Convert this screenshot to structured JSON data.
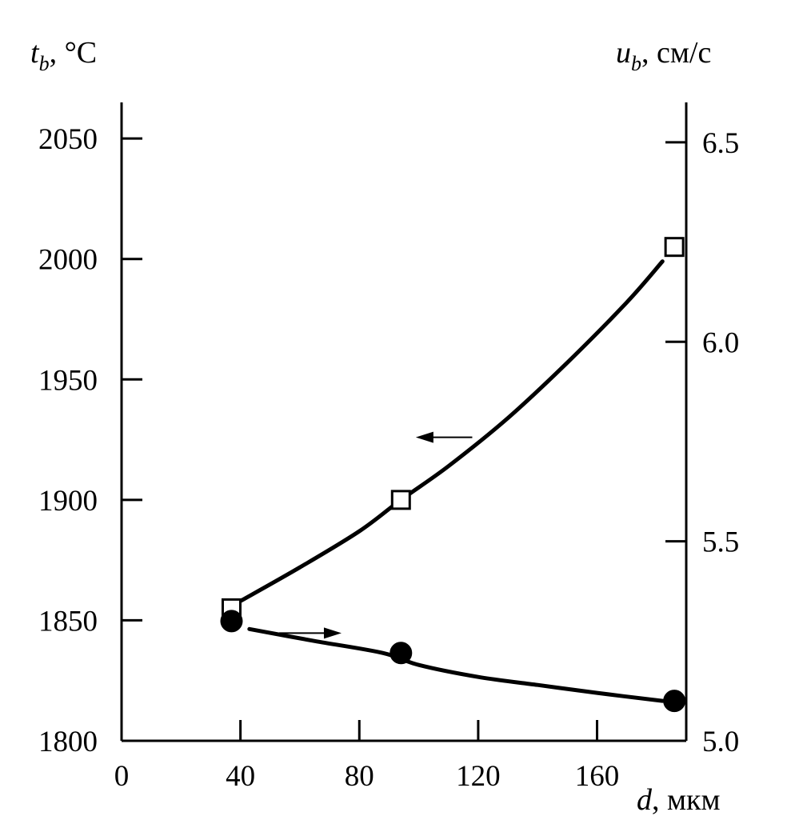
{
  "chart_data": {
    "type": "line",
    "x_axis": {
      "label_symbol": "d",
      "label_sub": "",
      "label_unit": ", мкм",
      "range": [
        0,
        190
      ],
      "ticks": [
        0,
        40,
        80,
        120,
        160
      ],
      "tick_labels": [
        "0",
        "40",
        "80",
        "120",
        "160"
      ]
    },
    "y_left": {
      "label_symbol": "t",
      "label_sub": "b",
      "label_unit": ", °C",
      "range": [
        1800,
        2065
      ],
      "ticks": [
        1800,
        1850,
        1900,
        1950,
        2000,
        2050
      ],
      "tick_labels": [
        "1800",
        "1850",
        "1900",
        "1950",
        "2000",
        "2050"
      ]
    },
    "y_right": {
      "label_symbol": "u",
      "label_sub": "b",
      "label_unit": ", см/с",
      "range": [
        5.0,
        6.6
      ],
      "ticks": [
        5.0,
        5.5,
        6.0,
        6.5
      ],
      "tick_labels": [
        "5.0",
        "5.5",
        "6.0",
        "6.5"
      ]
    },
    "series": [
      {
        "axis": "left",
        "marker": "open-square",
        "x": [
          37,
          94,
          186
        ],
        "y": [
          1855,
          1900,
          2005
        ],
        "curve_x": [
          40,
          60,
          80,
          94,
          110,
          130,
          150,
          170,
          182
        ],
        "curve_y": [
          1858,
          1872,
          1887,
          1900,
          1914,
          1934,
          1957,
          1982,
          1999
        ],
        "arrow": {
          "direction": "left",
          "x_from": 118,
          "x_to": 99,
          "y": 1926
        }
      },
      {
        "axis": "right",
        "marker": "filled-circle",
        "x": [
          37,
          94,
          186
        ],
        "y": [
          5.3,
          5.22,
          5.1
        ],
        "curve_x": [
          43,
          65,
          88,
          100,
          120,
          140,
          160,
          182
        ],
        "curve_y": [
          5.28,
          5.25,
          5.22,
          5.19,
          5.16,
          5.14,
          5.12,
          5.1
        ],
        "arrow": {
          "direction": "right",
          "x_from": 53,
          "x_to": 74,
          "y": 5.27
        }
      }
    ],
    "grid": false
  }
}
